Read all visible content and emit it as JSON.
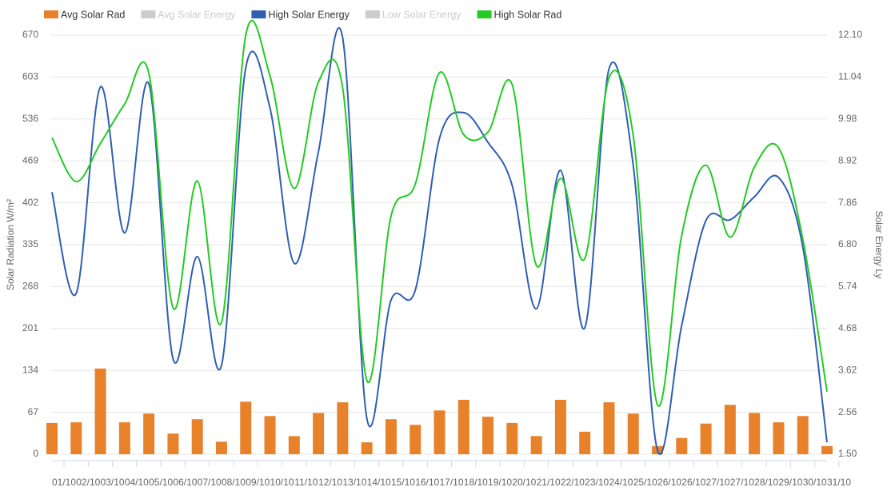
{
  "chart_data": {
    "type": "combo",
    "categories": [
      "01/10",
      "02/10",
      "03/10",
      "04/10",
      "05/10",
      "06/10",
      "07/10",
      "08/10",
      "09/10",
      "10/10",
      "11/10",
      "12/10",
      "13/10",
      "14/10",
      "15/10",
      "16/10",
      "17/10",
      "18/10",
      "19/10",
      "20/10",
      "21/10",
      "22/10",
      "23/10",
      "24/10",
      "25/10",
      "26/10",
      "26/10",
      "27/10",
      "27/10",
      "28/10",
      "29/10",
      "30/10",
      "31/10"
    ],
    "ylabel": "Solar Radiation W/m²",
    "y2label": "Solar Energy Ly",
    "ylim": [
      0,
      670
    ],
    "yticks": [
      0,
      67,
      134,
      201,
      268,
      335,
      402,
      469,
      536,
      603,
      670
    ],
    "y2lim": [
      1.5,
      12.1
    ],
    "y2ticks": [
      {
        "value": 1.5,
        "label": "1.50"
      },
      2.56,
      3.62,
      4.68,
      5.74,
      {
        "value": 6.8,
        "label": "6.80"
      },
      7.86,
      8.92,
      9.98,
      11.04,
      {
        "value": 12.1,
        "label": "12.10"
      }
    ],
    "grid": true,
    "legend": "top-left",
    "series": [
      {
        "name": "Avg Solar Rad",
        "type": "bar",
        "color": "#e8822a",
        "values": [
          50,
          51,
          137,
          51,
          65,
          33,
          56,
          20,
          84,
          61,
          29,
          66,
          83,
          19,
          56,
          47,
          70,
          87,
          60,
          50,
          29,
          87,
          36,
          83,
          65,
          13,
          26,
          49,
          79,
          66,
          51,
          61,
          13
        ]
      },
      {
        "name": "Avg Solar Energy",
        "hidden": true,
        "color": "#cccccc"
      },
      {
        "name": "High Solar Energy",
        "type": "line",
        "axis": "y2",
        "color": "#2f5fb3",
        "values": [
          8.13,
          5.57,
          10.79,
          7.1,
          10.87,
          3.91,
          6.5,
          3.75,
          11.27,
          10.26,
          6.33,
          9.15,
          12.04,
          2.41,
          5.4,
          5.65,
          9.49,
          10.14,
          9.39,
          8.3,
          5.18,
          8.68,
          4.7,
          11.25,
          8.8,
          1.6,
          4.76,
          7.41,
          7.43,
          8.01,
          8.5,
          6.74,
          1.8
        ]
      },
      {
        "name": "Low Solar Energy",
        "hidden": true,
        "color": "#cccccc"
      },
      {
        "name": "High Solar Rad",
        "type": "line",
        "color": "#22cc22",
        "values": [
          506,
          436,
          497,
          560,
          609,
          234,
          437,
          211,
          670,
          605,
          425,
          595,
          586,
          118,
          381,
          432,
          610,
          511,
          515,
          591,
          302,
          441,
          313,
          602,
          509,
          79,
          350,
          462,
          347,
          459,
          490,
          344,
          100
        ]
      }
    ]
  }
}
